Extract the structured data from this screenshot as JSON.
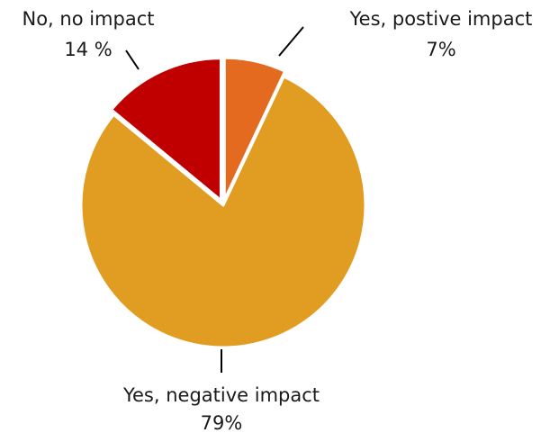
{
  "chart_data": {
    "type": "pie",
    "title": "",
    "slices": [
      {
        "label": "Yes, postive impact",
        "value_text": "7%",
        "value": 7,
        "color": "#E36A1F"
      },
      {
        "label": "Yes, negative impact",
        "value_text": "79%",
        "value": 79,
        "color": "#E09D22"
      },
      {
        "label": "No, no impact",
        "value_text": "14 %",
        "value": 14,
        "color": "#C00000"
      }
    ],
    "start_angle_deg": 0,
    "direction": "clockwise",
    "exploded_slices": [
      "Yes, postive impact",
      "No, no impact"
    ],
    "legend": "none",
    "labels": "outside with leader lines"
  }
}
